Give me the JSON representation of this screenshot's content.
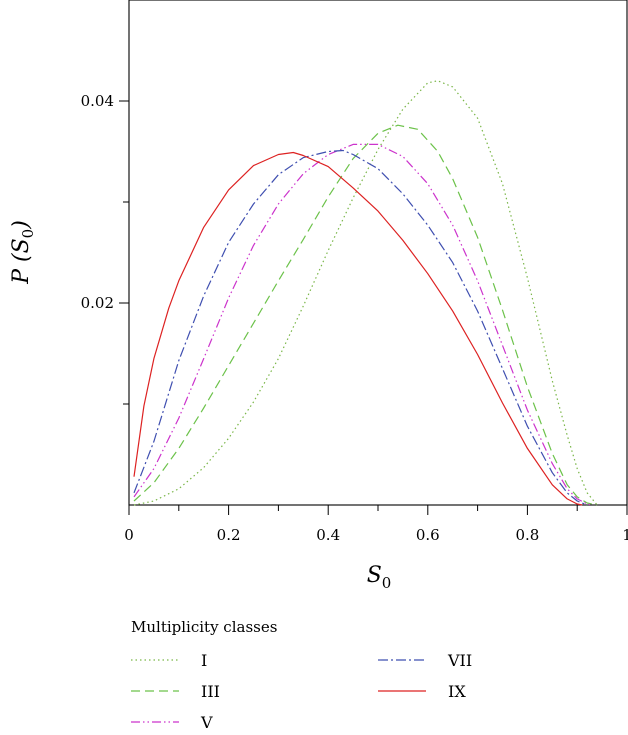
{
  "chart_data": {
    "type": "line",
    "title": "",
    "xlabel": {
      "main": "S",
      "sub": "0"
    },
    "ylabel": {
      "main": "P (S",
      "sub": "0",
      "close": ")"
    },
    "xlim": [
      0,
      1
    ],
    "ylim": [
      0,
      0.05
    ],
    "x_major_ticks": [
      0,
      0.2,
      0.4,
      0.6,
      0.8,
      1
    ],
    "x_tick_labels": [
      "0",
      "0.2",
      "0.4",
      "0.6",
      "0.8",
      "1"
    ],
    "x_minor_ticks": [
      0.1,
      0.3,
      0.5,
      0.7,
      0.9
    ],
    "y_major_ticks": [
      0.02,
      0.04
    ],
    "y_tick_labels": [
      "0.02",
      "0.04"
    ],
    "y_minor_ticks": [
      0.01,
      0.03
    ],
    "grid": false,
    "legend": {
      "title": "Multiplicity classes",
      "placement": "below"
    },
    "series": [
      {
        "name": "I",
        "color": "#7ab648",
        "dash": "1.5,3",
        "x": [
          0.01,
          0.05,
          0.1,
          0.15,
          0.2,
          0.25,
          0.3,
          0.35,
          0.4,
          0.45,
          0.5,
          0.55,
          0.6,
          0.62,
          0.65,
          0.7,
          0.75,
          0.8,
          0.85,
          0.88,
          0.9,
          0.92,
          0.94
        ],
        "values": [
          0.0,
          0.0004,
          0.0016,
          0.0037,
          0.0066,
          0.0102,
          0.0145,
          0.0197,
          0.0252,
          0.0304,
          0.0352,
          0.0392,
          0.0418,
          0.042,
          0.0414,
          0.0383,
          0.0318,
          0.0225,
          0.0123,
          0.0069,
          0.0036,
          0.0012,
          0.0
        ]
      },
      {
        "name": "III",
        "color": "#6cc24a",
        "dash": "9,5",
        "x": [
          0.01,
          0.05,
          0.1,
          0.15,
          0.2,
          0.25,
          0.3,
          0.35,
          0.4,
          0.45,
          0.5,
          0.54,
          0.58,
          0.62,
          0.65,
          0.7,
          0.75,
          0.8,
          0.85,
          0.88,
          0.9,
          0.92,
          0.94
        ],
        "values": [
          0.0004,
          0.0022,
          0.0056,
          0.0096,
          0.0138,
          0.018,
          0.0222,
          0.0263,
          0.0305,
          0.0343,
          0.0368,
          0.0376,
          0.0372,
          0.035,
          0.0323,
          0.0265,
          0.0193,
          0.0117,
          0.0051,
          0.002,
          0.0008,
          0.0002,
          0.0
        ]
      },
      {
        "name": "V",
        "color": "#cc33cc",
        "dash": "9,3,1.5,3,1.5,3",
        "x": [
          0.01,
          0.05,
          0.1,
          0.15,
          0.2,
          0.25,
          0.3,
          0.35,
          0.4,
          0.45,
          0.5,
          0.55,
          0.6,
          0.65,
          0.7,
          0.75,
          0.8,
          0.85,
          0.88,
          0.9,
          0.92,
          0.93
        ],
        "values": [
          0.0008,
          0.0036,
          0.0086,
          0.0145,
          0.0205,
          0.0257,
          0.0298,
          0.0328,
          0.0347,
          0.0357,
          0.0357,
          0.0345,
          0.0318,
          0.0277,
          0.0222,
          0.0158,
          0.0094,
          0.0041,
          0.0016,
          0.0006,
          0.0001,
          0.0
        ]
      },
      {
        "name": "VII",
        "color": "#3f4fb0",
        "dash": "10,3,2,3",
        "x": [
          0.01,
          0.05,
          0.1,
          0.15,
          0.2,
          0.25,
          0.3,
          0.35,
          0.4,
          0.43,
          0.45,
          0.5,
          0.55,
          0.6,
          0.65,
          0.7,
          0.75,
          0.8,
          0.85,
          0.88,
          0.9,
          0.92
        ],
        "values": [
          0.0012,
          0.0063,
          0.0143,
          0.0207,
          0.026,
          0.0298,
          0.0327,
          0.0344,
          0.035,
          0.0351,
          0.0347,
          0.0333,
          0.0308,
          0.0277,
          0.024,
          0.0192,
          0.0135,
          0.0078,
          0.0032,
          0.0012,
          0.0004,
          0.0
        ]
      },
      {
        "name": "IX",
        "color": "#dd2222",
        "dash": "",
        "x": [
          0.01,
          0.03,
          0.05,
          0.08,
          0.1,
          0.15,
          0.2,
          0.25,
          0.3,
          0.33,
          0.35,
          0.4,
          0.45,
          0.5,
          0.55,
          0.6,
          0.65,
          0.7,
          0.75,
          0.8,
          0.85,
          0.88,
          0.9,
          0.91
        ],
        "values": [
          0.0028,
          0.0098,
          0.0145,
          0.0195,
          0.0222,
          0.0275,
          0.0312,
          0.0336,
          0.0347,
          0.0349,
          0.0346,
          0.0335,
          0.0314,
          0.0291,
          0.0262,
          0.0229,
          0.0192,
          0.0149,
          0.0101,
          0.0056,
          0.002,
          0.0006,
          0.0001,
          0.0
        ]
      }
    ]
  }
}
